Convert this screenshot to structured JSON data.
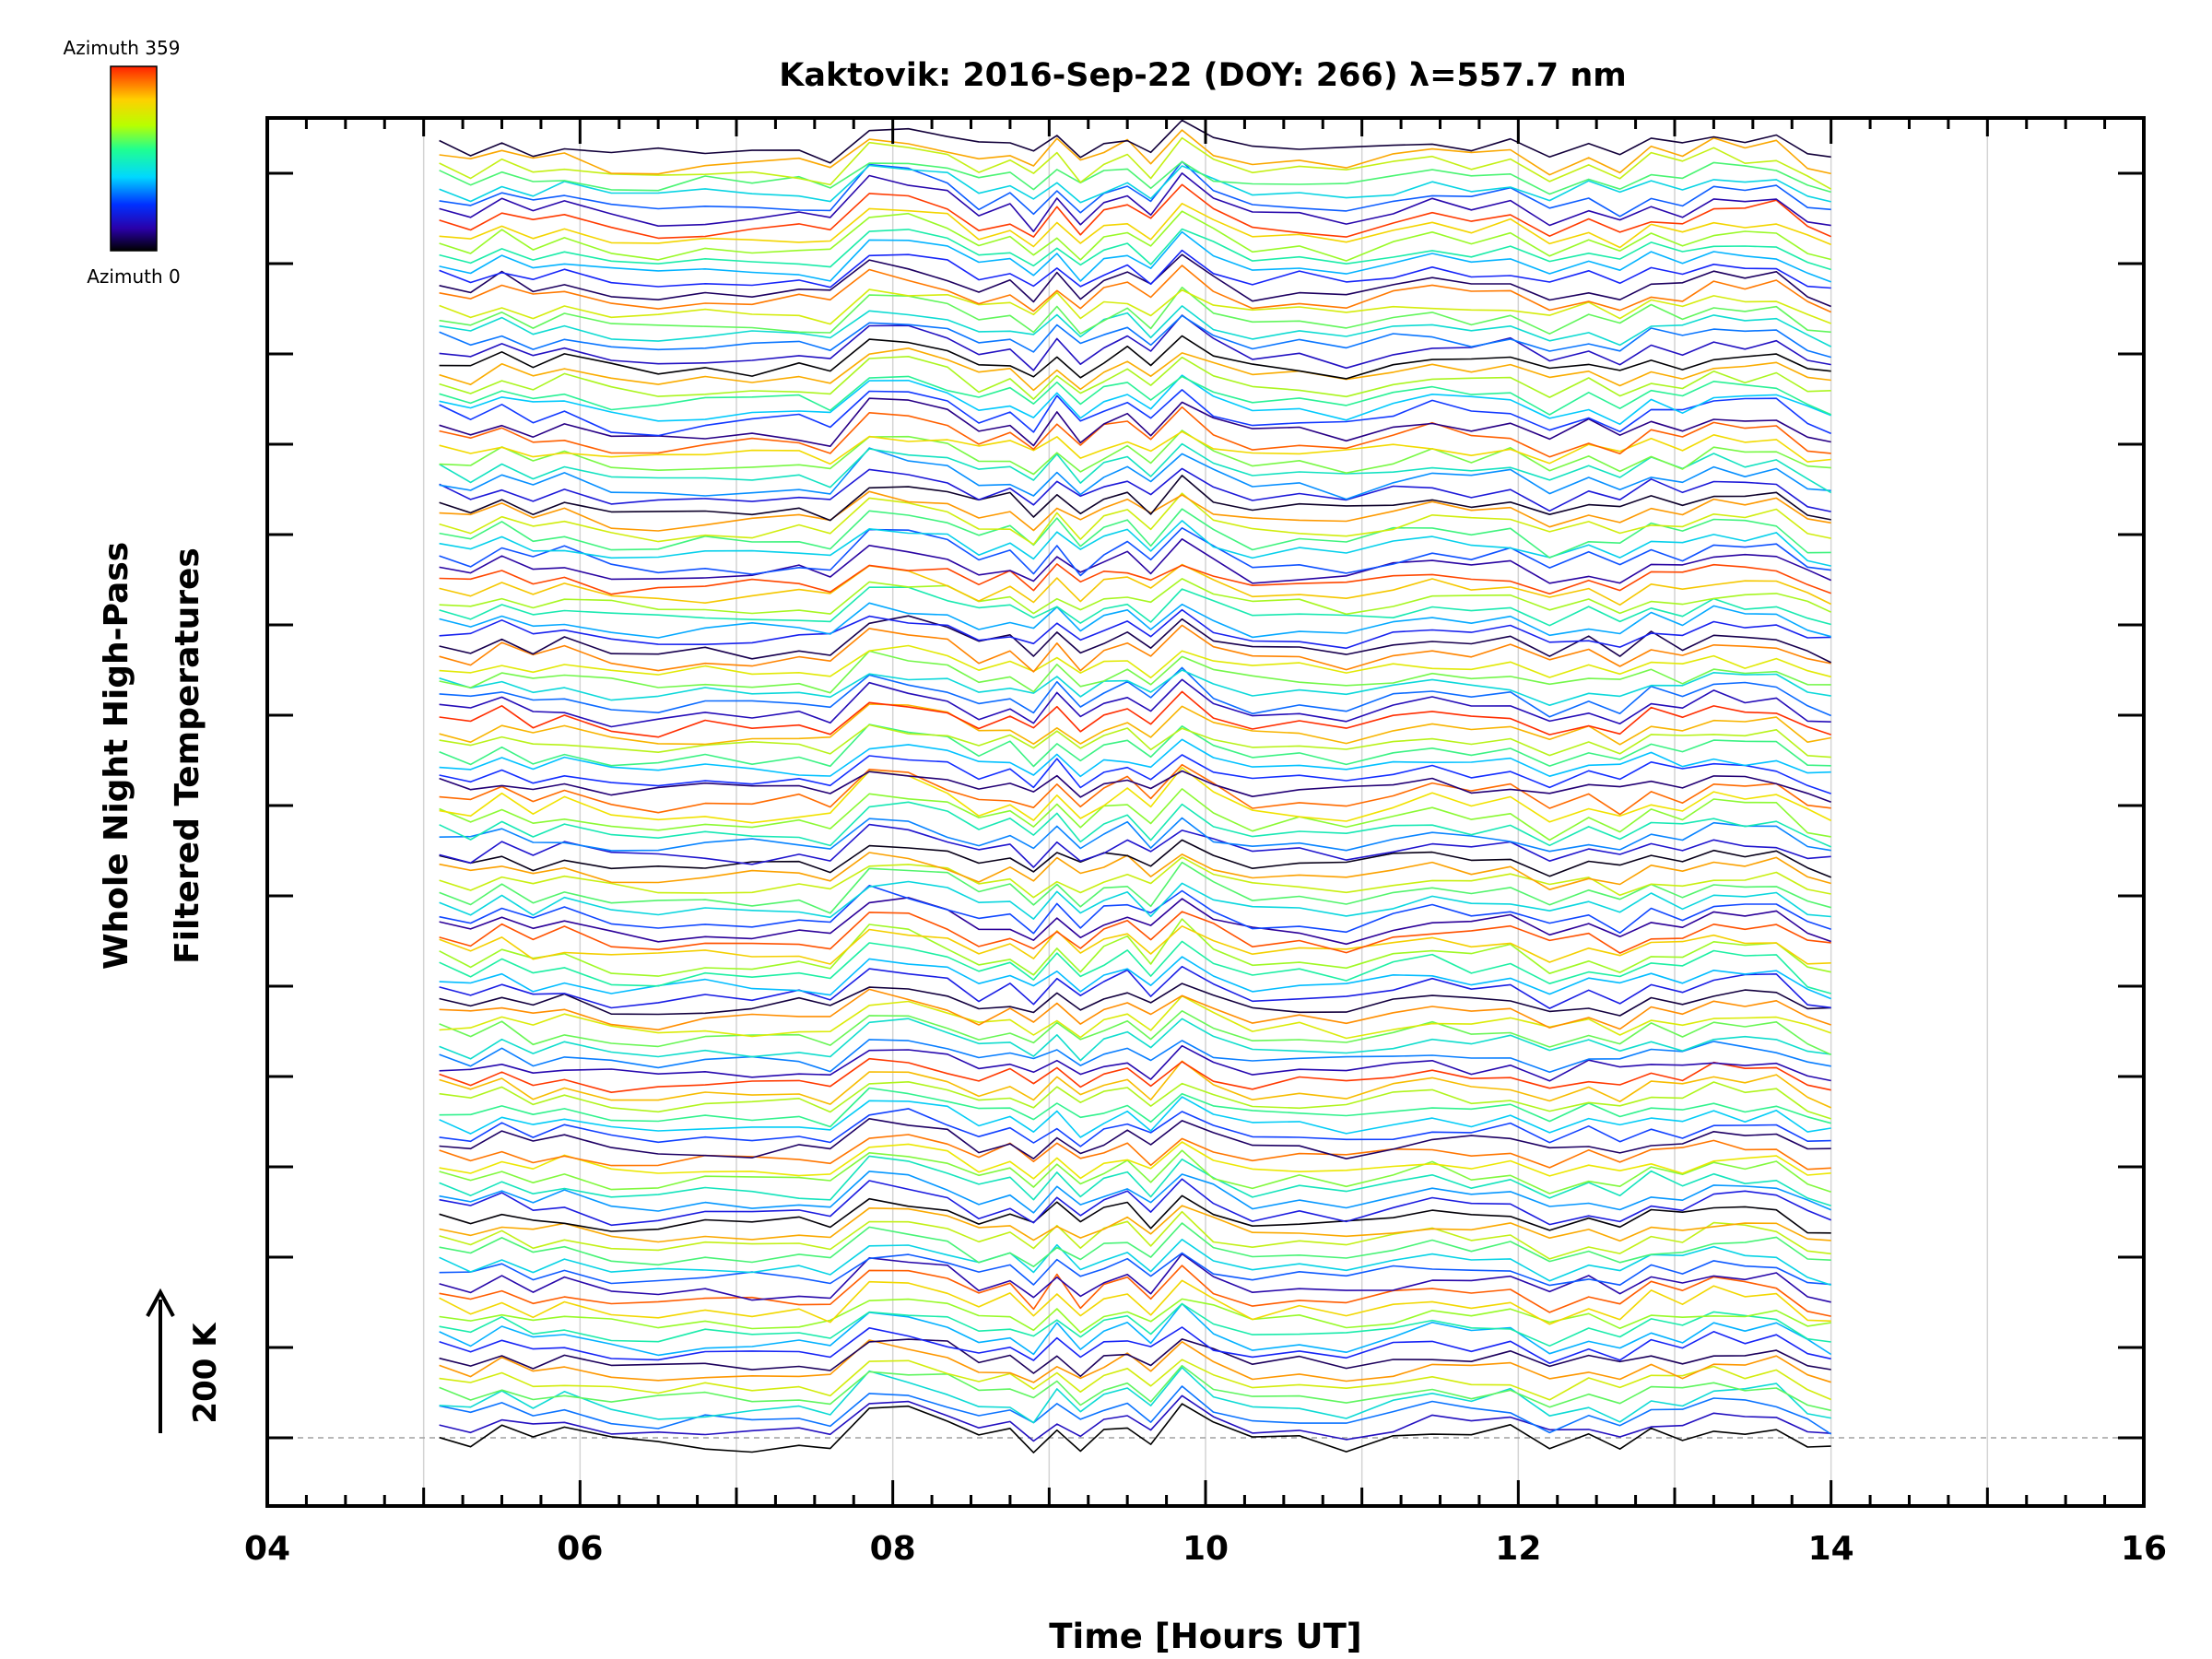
{
  "chart_data": {
    "type": "line",
    "title": "Kaktovik: 2016-Sep-22 (DOY: 266) λ=557.7 nm",
    "xlabel": "Time [Hours UT]",
    "ylabel_line1": "Whole Night High-Pass",
    "ylabel_line2": "Filtered Temperatures",
    "scale_label": "200 K",
    "xlim": [
      4,
      16
    ],
    "x_ticks": [
      "04",
      "06",
      "08",
      "10",
      "12",
      "14",
      "16"
    ],
    "x_tick_values": [
      4,
      6,
      8,
      10,
      12,
      14,
      16
    ],
    "data_time_range": [
      5.1,
      14.0
    ],
    "colorbar": {
      "top_label": "Azimuth 359",
      "bottom_label": "Azimuth 0",
      "colormap": "rainbow"
    },
    "series_count": 120,
    "series_description": "One high-pass filtered temperature trace per azimuth, vertically offset and stacked, colored by azimuth (0–359).",
    "common_features": {
      "times": [
        5.1,
        5.3,
        5.5,
        5.7,
        5.9,
        6.2,
        6.5,
        6.8,
        7.1,
        7.4,
        7.6,
        7.85,
        8.1,
        8.35,
        8.55,
        8.75,
        8.9,
        9.05,
        9.2,
        9.35,
        9.5,
        9.65,
        9.85,
        10.05,
        10.3,
        10.6,
        10.9,
        11.2,
        11.45,
        11.7,
        11.95,
        12.2,
        12.45,
        12.65,
        12.85,
        13.05,
        13.25,
        13.45,
        13.65,
        13.85,
        14.0
      ],
      "relative_temperature_K": [
        10,
        -8,
        22,
        -5,
        12,
        -15,
        -20,
        -10,
        -12,
        -6,
        -18,
        55,
        48,
        30,
        -5,
        12,
        -22,
        28,
        -18,
        15,
        32,
        -6,
        62,
        18,
        -12,
        -4,
        -16,
        6,
        22,
        6,
        16,
        -22,
        4,
        -18,
        18,
        2,
        30,
        22,
        28,
        -14,
        -26
      ]
    }
  },
  "colors": {
    "frame": "#000000",
    "grid": "#d4d4d4",
    "baseline": "#a0a0a0"
  }
}
